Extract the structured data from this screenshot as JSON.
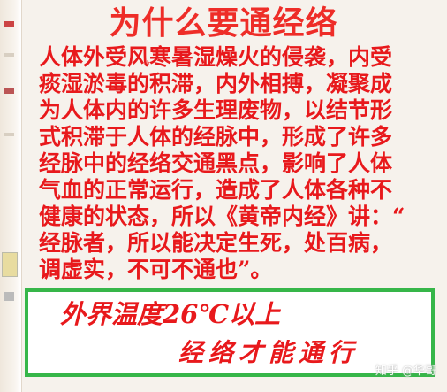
{
  "title": "为什么要通经络",
  "body_lines": [
    "人体外受风寒暑湿燥火的侵袭，内受",
    "痰湿淤毒的积滞，内外相搏，凝聚成",
    "为人体内的许多生理废物，以结节形",
    "式积滞于人体的经脉中，形成了许多",
    "经脉中的经络交通黑点，影响了人体",
    "气血的正常运行，造成了人体各种不",
    "健康的状态，所以《黄帝内经》讲：“",
    "经脉者，所以能决定生死，处百病，",
    "调虚实，不可不通也”。"
  ],
  "footer": {
    "line1": "外界温度26℃以上",
    "line2": "经络才能通行"
  },
  "watermark": "知乎 @华哥",
  "colors": {
    "text_red": "#e8191c",
    "title_red": "#ee2d28",
    "box_green": "#36b649",
    "background": "#f6f2ec"
  }
}
